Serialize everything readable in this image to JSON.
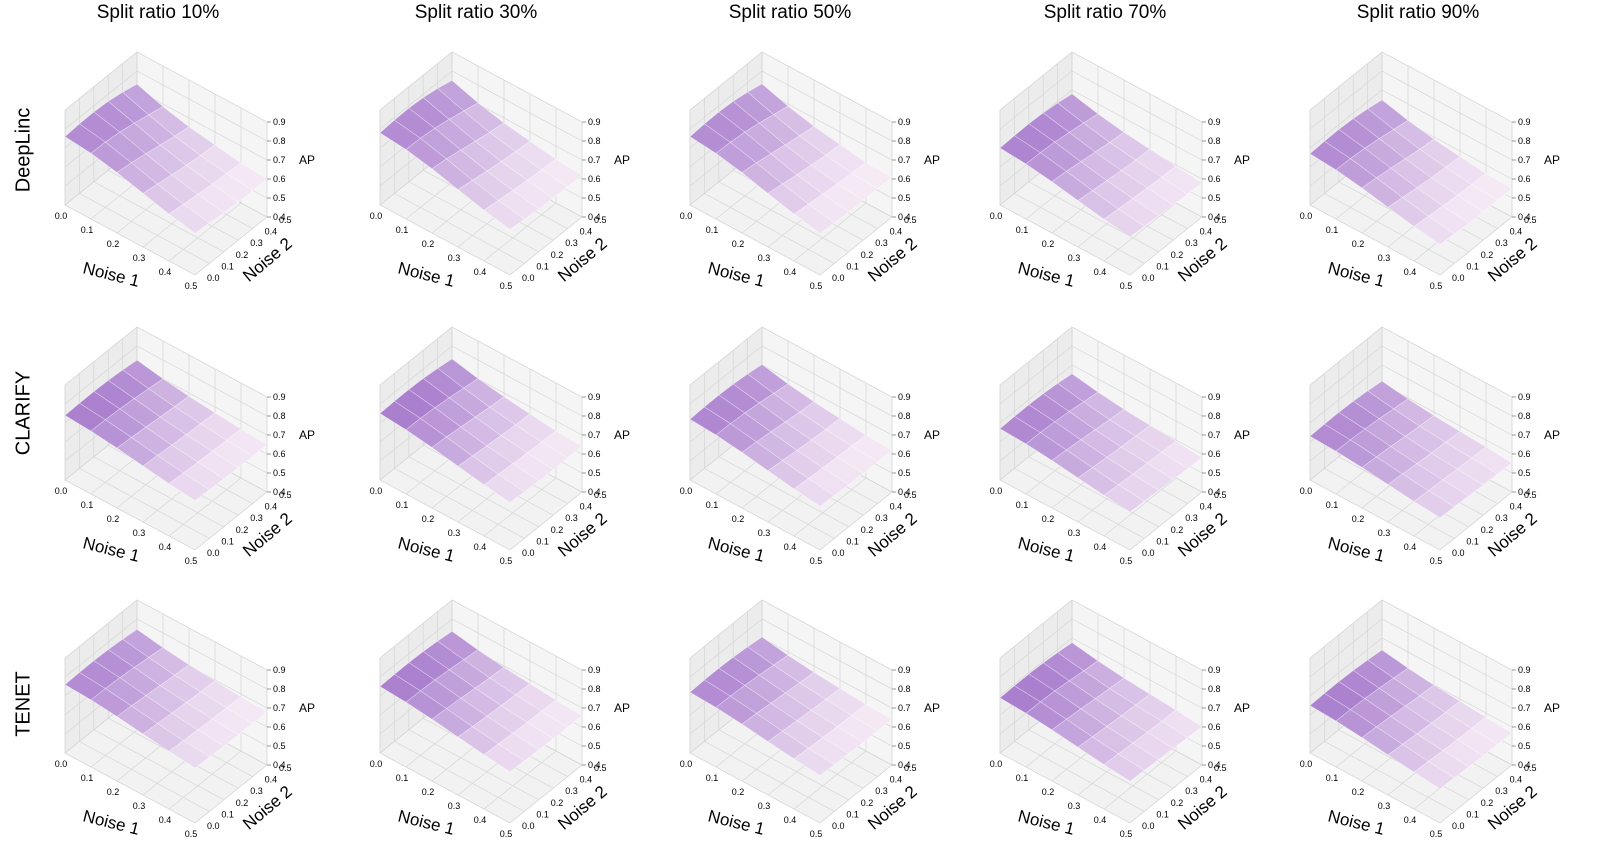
{
  "chart_data": {
    "type": "surface3d",
    "columns": [
      "Split ratio 10%",
      "Split ratio 30%",
      "Split ratio 50%",
      "Split ratio 70%",
      "Split ratio 90%"
    ],
    "rows": [
      "DeepLinc",
      "CLARIFY",
      "TENET"
    ],
    "axes": {
      "xlabel": "Noise 1",
      "ylabel": "Noise 2",
      "zlabel": "AP",
      "xticks": [
        "0.0",
        "0.1",
        "0.2",
        "0.3",
        "0.4",
        "0.5"
      ],
      "yticks": [
        "0.0",
        "0.1",
        "0.2",
        "0.3",
        "0.4",
        "0.5"
      ],
      "zticks": [
        "0.4",
        "0.5",
        "0.6",
        "0.7",
        "0.8",
        "0.9"
      ],
      "xlim": [
        0,
        0.5
      ],
      "ylim": [
        0,
        0.5
      ],
      "zlim": [
        0.4,
        0.9
      ]
    },
    "grid": true,
    "colormap": [
      "#f7ecf6",
      "#9e6fc8"
    ],
    "panels": [
      {
        "row": "DeepLinc",
        "column": "Split ratio 10%",
        "ap_min": 0.6,
        "ap_max": 0.8,
        "ap_noise1_0": 0.76,
        "ap_noise1_05": 0.62
      },
      {
        "row": "DeepLinc",
        "column": "Split ratio 30%",
        "ap_min": 0.62,
        "ap_max": 0.82,
        "ap_noise1_0": 0.78,
        "ap_noise1_05": 0.64
      },
      {
        "row": "DeepLinc",
        "column": "Split ratio 50%",
        "ap_min": 0.61,
        "ap_max": 0.8,
        "ap_noise1_0": 0.76,
        "ap_noise1_05": 0.62
      },
      {
        "row": "DeepLinc",
        "column": "Split ratio 70%",
        "ap_min": 0.58,
        "ap_max": 0.72,
        "ap_noise1_0": 0.7,
        "ap_noise1_05": 0.6
      },
      {
        "row": "DeepLinc",
        "column": "Split ratio 90%",
        "ap_min": 0.55,
        "ap_max": 0.7,
        "ap_noise1_0": 0.67,
        "ap_noise1_05": 0.56
      },
      {
        "row": "CLARIFY",
        "column": "Split ratio 10%",
        "ap_min": 0.65,
        "ap_max": 0.75,
        "ap_noise1_0": 0.74,
        "ap_noise1_05": 0.66
      },
      {
        "row": "CLARIFY",
        "column": "Split ratio 30%",
        "ap_min": 0.64,
        "ap_max": 0.76,
        "ap_noise1_0": 0.75,
        "ap_noise1_05": 0.65
      },
      {
        "row": "CLARIFY",
        "column": "Split ratio 50%",
        "ap_min": 0.62,
        "ap_max": 0.74,
        "ap_noise1_0": 0.72,
        "ap_noise1_05": 0.63
      },
      {
        "row": "CLARIFY",
        "column": "Split ratio 70%",
        "ap_min": 0.58,
        "ap_max": 0.69,
        "ap_noise1_0": 0.67,
        "ap_noise1_05": 0.6
      },
      {
        "row": "CLARIFY",
        "column": "Split ratio 90%",
        "ap_min": 0.55,
        "ap_max": 0.65,
        "ap_noise1_0": 0.63,
        "ap_noise1_05": 0.57
      },
      {
        "row": "TENET",
        "column": "Split ratio 10%",
        "ap_min": 0.68,
        "ap_max": 0.78,
        "ap_noise1_0": 0.76,
        "ap_noise1_05": 0.69
      },
      {
        "row": "TENET",
        "column": "Split ratio 30%",
        "ap_min": 0.66,
        "ap_max": 0.76,
        "ap_noise1_0": 0.75,
        "ap_noise1_05": 0.67
      },
      {
        "row": "TENET",
        "column": "Split ratio 50%",
        "ap_min": 0.64,
        "ap_max": 0.74,
        "ap_noise1_0": 0.72,
        "ap_noise1_05": 0.65
      },
      {
        "row": "TENET",
        "column": "Split ratio 70%",
        "ap_min": 0.6,
        "ap_max": 0.7,
        "ap_noise1_0": 0.69,
        "ap_noise1_05": 0.62
      },
      {
        "row": "TENET",
        "column": "Split ratio 90%",
        "ap_min": 0.57,
        "ap_max": 0.66,
        "ap_noise1_0": 0.65,
        "ap_noise1_05": 0.58
      }
    ]
  }
}
